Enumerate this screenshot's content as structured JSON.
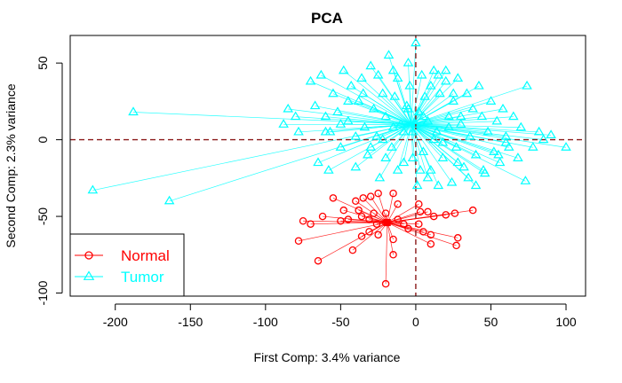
{
  "chart_data": {
    "type": "scatter",
    "title": "PCA",
    "xlabel": "First Comp: 3.4% variance",
    "ylabel": "Second Comp: 2.3% variance",
    "xlim": [
      -230,
      113
    ],
    "ylim": [
      -102,
      68
    ],
    "xticks": [
      -200,
      -150,
      -100,
      -50,
      0,
      50,
      100
    ],
    "yticks": [
      -100,
      -50,
      0,
      50
    ],
    "grid": false,
    "reference_lines": {
      "x": 0,
      "y": 0,
      "color": "#8b1a1a",
      "style": "dashed"
    },
    "legend_position": "bottom-left",
    "series": [
      {
        "name": "Normal",
        "color": "#ff0000",
        "marker": "circle",
        "centroid": [
          -19,
          -54
        ],
        "points": [
          [
            -55,
            -38
          ],
          [
            -40,
            -40
          ],
          [
            -35,
            -38
          ],
          [
            -30,
            -37
          ],
          [
            -25,
            -35
          ],
          [
            -15,
            -35
          ],
          [
            -48,
            -46
          ],
          [
            -38,
            -46
          ],
          [
            -28,
            -48
          ],
          [
            -20,
            -48
          ],
          [
            -12,
            -42
          ],
          [
            -75,
            -53
          ],
          [
            -70,
            -55
          ],
          [
            -62,
            -50
          ],
          [
            -50,
            -53
          ],
          [
            -45,
            -52
          ],
          [
            -36,
            -50
          ],
          [
            -31,
            -52
          ],
          [
            -26,
            -55
          ],
          [
            -20,
            -54
          ],
          [
            -12,
            -52
          ],
          [
            -8,
            -55
          ],
          [
            -5,
            -58
          ],
          [
            2,
            -42
          ],
          [
            3,
            -47
          ],
          [
            8,
            -47
          ],
          [
            12,
            -50
          ],
          [
            20,
            -49
          ],
          [
            26,
            -48
          ],
          [
            38,
            -46
          ],
          [
            2,
            -55
          ],
          [
            5,
            -60
          ],
          [
            10,
            -62
          ],
          [
            -36,
            -63
          ],
          [
            -31,
            -60
          ],
          [
            -25,
            -62
          ],
          [
            -15,
            -65
          ],
          [
            -78,
            -66
          ],
          [
            -65,
            -79
          ],
          [
            -42,
            -72
          ],
          [
            -15,
            -75
          ],
          [
            10,
            -68
          ],
          [
            28,
            -64
          ],
          [
            27,
            -69
          ],
          [
            -20,
            -94
          ]
        ]
      },
      {
        "name": "Tumor",
        "color": "#00ffff",
        "marker": "triangle",
        "centroid": [
          -3,
          10
        ],
        "points": [
          [
            -215,
            -33
          ],
          [
            -188,
            18
          ],
          [
            -164,
            -40
          ],
          [
            -88,
            10
          ],
          [
            -85,
            20
          ],
          [
            -80,
            15
          ],
          [
            -78,
            5
          ],
          [
            -70,
            38
          ],
          [
            -67,
            22
          ],
          [
            -65,
            -15
          ],
          [
            -63,
            42
          ],
          [
            -60,
            15
          ],
          [
            -58,
            -20
          ],
          [
            -57,
            5
          ],
          [
            -55,
            30
          ],
          [
            -52,
            18
          ],
          [
            -50,
            -5
          ],
          [
            -48,
            45
          ],
          [
            -45,
            12
          ],
          [
            -43,
            35
          ],
          [
            -40,
            -18
          ],
          [
            -38,
            25
          ],
          [
            -36,
            40
          ],
          [
            -34,
            8
          ],
          [
            -32,
            -10
          ],
          [
            -30,
            48
          ],
          [
            -28,
            20
          ],
          [
            -26,
            2
          ],
          [
            -24,
            -25
          ],
          [
            -22,
            30
          ],
          [
            -20,
            15
          ],
          [
            -18,
            55
          ],
          [
            -16,
            -5
          ],
          [
            -14,
            28
          ],
          [
            -12,
            40
          ],
          [
            -10,
            10
          ],
          [
            -8,
            -15
          ],
          [
            -6,
            22
          ],
          [
            -4,
            35
          ],
          [
            -2,
            5
          ],
          [
            0,
            63
          ],
          [
            1,
            -30
          ],
          [
            2,
            18
          ],
          [
            4,
            42
          ],
          [
            5,
            -8
          ],
          [
            6,
            28
          ],
          [
            8,
            12
          ],
          [
            10,
            -20
          ],
          [
            12,
            45
          ],
          [
            14,
            5
          ],
          [
            16,
            30
          ],
          [
            18,
            -12
          ],
          [
            20,
            38
          ],
          [
            22,
            15
          ],
          [
            24,
            -28
          ],
          [
            25,
            25
          ],
          [
            27,
            -5
          ],
          [
            28,
            40
          ],
          [
            30,
            10
          ],
          [
            32,
            -18
          ],
          [
            34,
            30
          ],
          [
            36,
            2
          ],
          [
            38,
            20
          ],
          [
            40,
            -10
          ],
          [
            42,
            35
          ],
          [
            44,
            15
          ],
          [
            46,
            -22
          ],
          [
            48,
            5
          ],
          [
            50,
            25
          ],
          [
            52,
            -8
          ],
          [
            54,
            12
          ],
          [
            56,
            -15
          ],
          [
            58,
            20
          ],
          [
            60,
            2
          ],
          [
            62,
            -5
          ],
          [
            65,
            15
          ],
          [
            68,
            -12
          ],
          [
            70,
            8
          ],
          [
            73,
            -27
          ],
          [
            74,
            35
          ],
          [
            78,
            -5
          ],
          [
            82,
            5
          ],
          [
            85,
            0
          ],
          [
            90,
            3
          ],
          [
            100,
            -5
          ],
          [
            -5,
            50
          ],
          [
            -15,
            45
          ],
          [
            -25,
            42
          ],
          [
            -35,
            30
          ],
          [
            -45,
            25
          ],
          [
            10,
            35
          ],
          [
            15,
            42
          ],
          [
            20,
            45
          ],
          [
            25,
            30
          ],
          [
            30,
            15
          ],
          [
            -2,
            -12
          ],
          [
            3,
            -20
          ],
          [
            8,
            -25
          ],
          [
            15,
            -30
          ],
          [
            -12,
            -20
          ],
          [
            -20,
            -12
          ],
          [
            -30,
            -5
          ],
          [
            -40,
            2
          ],
          [
            -50,
            10
          ],
          [
            -60,
            5
          ],
          [
            35,
            -25
          ],
          [
            40,
            -30
          ],
          [
            45,
            -20
          ],
          [
            55,
            -10
          ],
          [
            60,
            -2
          ],
          [
            -5,
            20
          ],
          [
            0,
            10
          ],
          [
            5,
            15
          ],
          [
            -8,
            5
          ],
          [
            12,
            0
          ],
          [
            -15,
            8
          ],
          [
            18,
            -2
          ],
          [
            22,
            8
          ],
          [
            -22,
            0
          ],
          [
            28,
            -15
          ]
        ]
      }
    ]
  }
}
